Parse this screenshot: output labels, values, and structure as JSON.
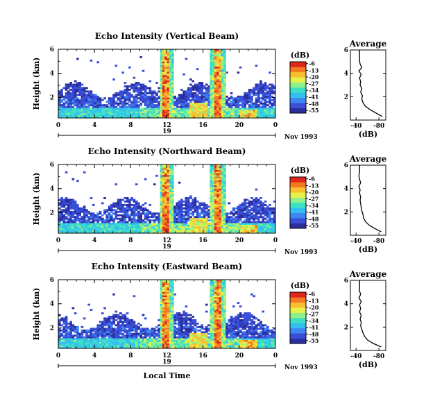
{
  "chart_data": [
    {
      "type": "heatmap",
      "title": "Echo Intensity (Vertical Beam)",
      "ylabel": "Height (km)",
      "x_ticks": [
        "0",
        "4",
        "8",
        "12",
        "16",
        "20",
        "0"
      ],
      "y_ticks": [
        "2",
        "4",
        "6"
      ],
      "date_day": "19",
      "date_label": "Nov 1993",
      "xlim": [
        0,
        24
      ],
      "ylim": [
        0.3,
        6
      ],
      "colorbar": {
        "unit_label": "(dB)",
        "ticks": [
          "-6",
          "-13",
          "-20",
          "-27",
          "-34",
          "-41",
          "-48",
          "-55"
        ],
        "range": [
          -58,
          -4
        ]
      },
      "profile": {
        "title": "Average",
        "xlabel": "(dB)",
        "x_ticks": [
          "-40",
          "-80"
        ],
        "y_ticks": [
          "2",
          "4",
          "6"
        ],
        "heights": [
          0.3,
          0.6,
          0.9,
          1.2,
          1.5,
          1.8,
          2.1,
          2.4,
          2.7,
          3.0,
          3.3,
          3.6,
          3.9,
          4.2,
          4.5,
          4.8,
          5.1,
          5.4,
          5.7,
          6.0
        ],
        "values": [
          -86,
          -75,
          -64,
          -56,
          -52,
          -50,
          -51,
          -48,
          -50,
          -47,
          -48,
          -46,
          -49,
          -45,
          -50,
          -47,
          -46,
          -46,
          -46,
          -46
        ]
      }
    },
    {
      "type": "heatmap",
      "title": "Echo Intensity (Northward Beam)",
      "ylabel": "Height (km)",
      "x_ticks": [
        "0",
        "4",
        "8",
        "12",
        "16",
        "20",
        "0"
      ],
      "y_ticks": [
        "2",
        "4",
        "6"
      ],
      "date_day": "19",
      "date_label": "Nov 1993",
      "xlim": [
        0,
        24
      ],
      "ylim": [
        0.3,
        6
      ],
      "colorbar": {
        "unit_label": "(dB)",
        "ticks": [
          "-6",
          "-13",
          "-20",
          "-27",
          "-34",
          "-41",
          "-48",
          "-55"
        ],
        "range": [
          -58,
          -4
        ]
      },
      "profile": {
        "title": "Average",
        "xlabel": "(dB)",
        "x_ticks": [
          "-40",
          "-80"
        ],
        "y_ticks": [
          "2",
          "4",
          "6"
        ],
        "heights": [
          0.3,
          0.6,
          0.9,
          1.2,
          1.5,
          1.8,
          2.1,
          2.4,
          2.7,
          3.0,
          3.3,
          3.6,
          3.9,
          4.2,
          4.5,
          4.8,
          5.1,
          5.4,
          5.7,
          6.0
        ],
        "values": [
          -84,
          -72,
          -62,
          -56,
          -53,
          -52,
          -50,
          -49,
          -48,
          -47,
          -48,
          -46,
          -47,
          -45,
          -48,
          -46,
          -45,
          -46,
          -46,
          -46
        ]
      }
    },
    {
      "type": "heatmap",
      "title": "Echo Intensity (Eastward Beam)",
      "ylabel": "Height (km)",
      "x_ticks": [
        "0",
        "4",
        "8",
        "12",
        "16",
        "20",
        "0"
      ],
      "y_ticks": [
        "2",
        "4",
        "6"
      ],
      "date_day": "19",
      "date_label": "Nov 1993",
      "xlabel": "Local Time",
      "xlim": [
        0,
        24
      ],
      "ylim": [
        0.3,
        6
      ],
      "colorbar": {
        "unit_label": "(dB)",
        "ticks": [
          "-6",
          "-13",
          "-20",
          "-27",
          "-34",
          "-41",
          "-48",
          "-55"
        ],
        "range": [
          -58,
          -4
        ]
      },
      "profile": {
        "title": "Average",
        "xlabel": "(dB)",
        "x_ticks": [
          "-40",
          "-80"
        ],
        "y_ticks": [
          "2",
          "4",
          "6"
        ],
        "heights": [
          0.3,
          0.6,
          0.9,
          1.2,
          1.5,
          1.8,
          2.1,
          2.4,
          2.7,
          3.0,
          3.3,
          3.6,
          3.9,
          4.2,
          4.5,
          4.8,
          5.1,
          5.4,
          5.7,
          6.0
        ],
        "values": [
          -84,
          -70,
          -60,
          -55,
          -52,
          -50,
          -48,
          -49,
          -47,
          -49,
          -46,
          -48,
          -46,
          -49,
          -45,
          -48,
          -46,
          -46,
          -46,
          -46
        ]
      }
    }
  ],
  "colormap": [
    "#2b2f9e",
    "#3a4fd8",
    "#3f86f0",
    "#35bff0",
    "#3de0c4",
    "#8ef08a",
    "#e8f04a",
    "#f8c030",
    "#f47a22",
    "#e0281a"
  ]
}
